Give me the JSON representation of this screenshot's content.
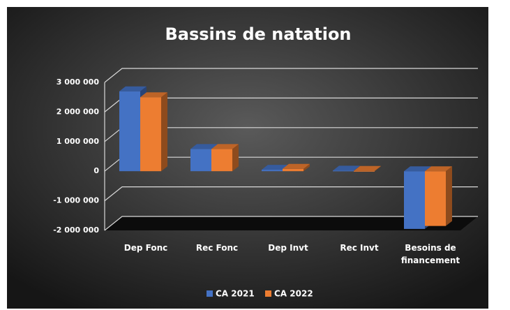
{
  "chart_data": {
    "type": "bar3d",
    "title": "Bassins de natation",
    "categories": [
      "Dep Fonc",
      "Rec Fonc",
      "Dep Invt",
      "Rec Invt",
      "Besoins de financement"
    ],
    "series": [
      {
        "name": "CA 2021",
        "color": "#4472c4",
        "values": [
          2700000,
          750000,
          50000,
          20000,
          -1950000
        ]
      },
      {
        "name": "CA 2022",
        "color": "#ed7d31",
        "values": [
          2500000,
          750000,
          80000,
          10000,
          -1850000
        ]
      }
    ],
    "ylim": [
      -2000000,
      3000000
    ],
    "yticks": [
      {
        "value": -2000000,
        "label": "-2 000 000"
      },
      {
        "value": -1000000,
        "label": "-1 000 000"
      },
      0,
      {
        "value": 1000000,
        "label": "1 000 000"
      },
      {
        "value": 2000000,
        "label": "2 000 000"
      },
      {
        "value": 3000000,
        "label": "3 000 000"
      }
    ],
    "grid": true,
    "legend": "bottom"
  }
}
